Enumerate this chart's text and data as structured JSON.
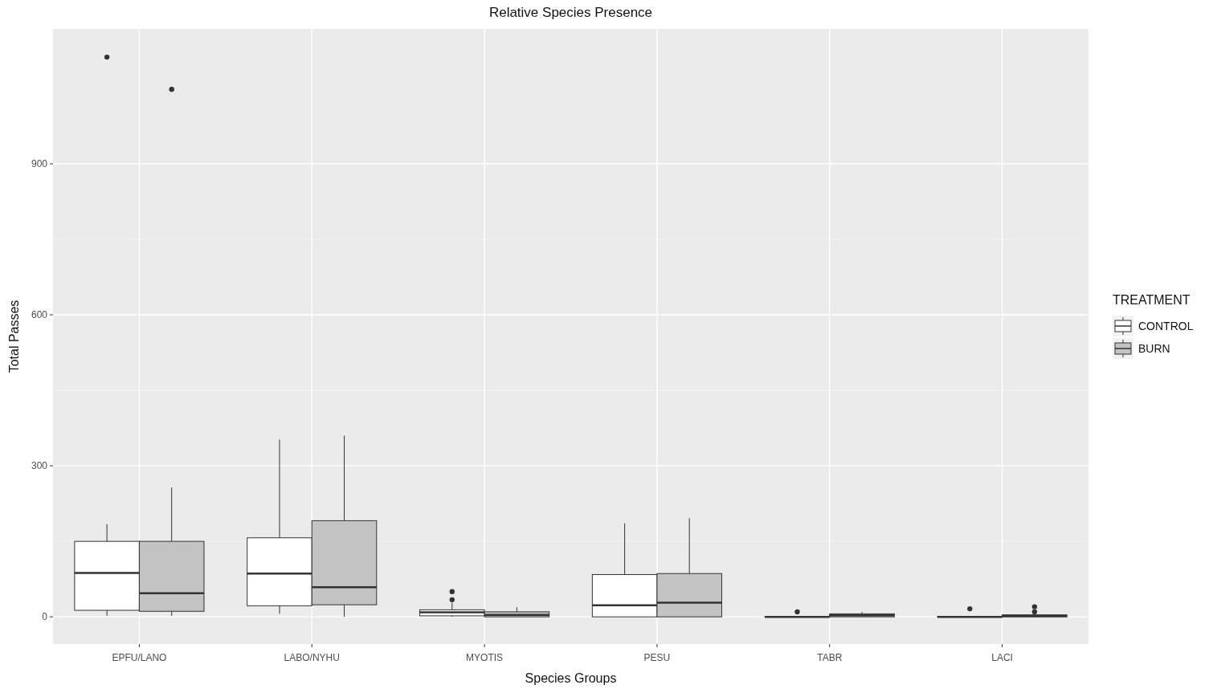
{
  "chart_data": {
    "type": "box",
    "title": "Relative Species Presence",
    "xlabel": "Species Groups",
    "ylabel": "Total Passes",
    "legend_title": "TREATMENT",
    "categories": [
      "EPFU/LANO",
      "LABO/NYHU",
      "MYOTIS",
      "PESU",
      "TABR",
      "LACI"
    ],
    "ylim": [
      -54,
      1168
    ],
    "yticks": [
      0,
      300,
      600,
      900
    ],
    "grid": true,
    "legend": "right",
    "series": [
      {
        "name": "CONTROL",
        "color": "#ffffff",
        "boxes": [
          {
            "low": 2,
            "q1": 13,
            "median": 87,
            "q3": 150,
            "high": 184,
            "outliers": [
              1112
            ]
          },
          {
            "low": 6,
            "q1": 22,
            "median": 86,
            "q3": 157,
            "high": 352
          },
          {
            "low": 0,
            "q1": 2,
            "median": 9,
            "q3": 14,
            "high": 28,
            "outliers": [
              34,
              50
            ]
          },
          {
            "low": 0,
            "q1": 0,
            "median": 23,
            "q3": 84,
            "high": 186
          },
          {
            "low": 0,
            "q1": 0,
            "median": 0,
            "q3": 1,
            "high": 1,
            "outliers": [
              10
            ]
          },
          {
            "low": 0,
            "q1": 0,
            "median": 0,
            "q3": 1,
            "high": 1,
            "outliers": [
              16
            ]
          }
        ]
      },
      {
        "name": "BURN",
        "color": "#c3c3c3",
        "boxes": [
          {
            "low": 2,
            "q1": 11,
            "median": 47,
            "q3": 150,
            "high": 257,
            "outliers": [
              1048
            ]
          },
          {
            "low": 0,
            "q1": 24,
            "median": 59,
            "q3": 191,
            "high": 360
          },
          {
            "low": 0,
            "q1": 0,
            "median": 4,
            "q3": 10,
            "high": 19
          },
          {
            "low": 0,
            "q1": 0,
            "median": 28,
            "q3": 86,
            "high": 196
          },
          {
            "low": 0,
            "q1": 0,
            "median": 3,
            "q3": 6,
            "high": 10
          },
          {
            "low": 0,
            "q1": 0,
            "median": 2,
            "q3": 4,
            "high": 4,
            "outliers": [
              10,
              20
            ]
          }
        ]
      }
    ]
  }
}
